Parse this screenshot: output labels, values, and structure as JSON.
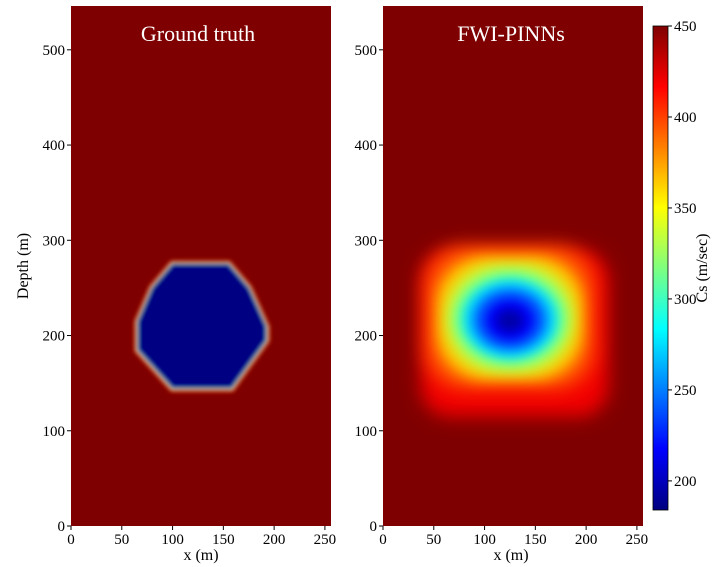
{
  "chart_data": [
    {
      "type": "heatmap",
      "title": "Ground truth",
      "xlabel": "x (m)",
      "ylabel": "Depth (m)",
      "xlim": [
        0,
        256
      ],
      "ylim": [
        0,
        546
      ],
      "xticks": [
        "0",
        "50",
        "100",
        "150",
        "200",
        "250"
      ],
      "yticks": [
        "0",
        "100",
        "200",
        "300",
        "400",
        "500"
      ],
      "background_value": 450,
      "anomaly": {
        "shape": "octagon",
        "value": 185,
        "vertices": [
          [
            100,
            275
          ],
          [
            155,
            275
          ],
          [
            175,
            250
          ],
          [
            192,
            210
          ],
          [
            192,
            195
          ],
          [
            158,
            145
          ],
          [
            100,
            145
          ],
          [
            66,
            185
          ],
          [
            66,
            215
          ],
          [
            80,
            250
          ]
        ]
      }
    },
    {
      "type": "heatmap",
      "title": "FWI-PINNs",
      "xlabel": "x (m)",
      "ylabel": "",
      "xlim": [
        0,
        256
      ],
      "ylim": [
        0,
        546
      ],
      "xticks": [
        "0",
        "50",
        "100",
        "150",
        "200",
        "250"
      ],
      "yticks": [
        "0",
        "100",
        "200",
        "300",
        "400",
        "500"
      ],
      "background_value": 450,
      "anomaly": {
        "shape": "smooth-blob",
        "center": [
          125,
          215
        ],
        "min_value": 195,
        "extent_x": [
          37,
          222
        ],
        "extent_y": [
          115,
          290
        ]
      }
    }
  ],
  "colorbar": {
    "label": "Cs (m/sec)",
    "min": 184,
    "max": 450,
    "ticks": [
      "200",
      "250",
      "300",
      "350",
      "400",
      "450"
    ],
    "colormap": "jet"
  }
}
